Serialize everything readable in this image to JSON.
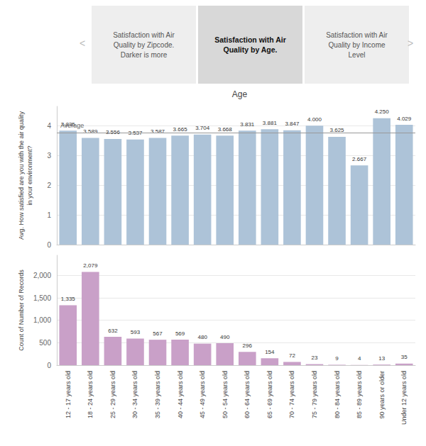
{
  "chart_data": [
    {
      "type": "bar",
      "title": "Age",
      "annotations": [
        "<",
        "Satisfaction with Air\nQuality by Zipcode.\nDarker is more",
        "Satisfaction with Air\nQuality by Age.",
        "Satisfaction with Air\nQuality by Income\nLevel",
        ">"
      ],
      "categories": [
        "12 - 17 years old",
        "18 - 24 years old",
        "25 - 29 years old",
        "30 - 34 years old",
        "35 - 39 years old",
        "40 - 44 years old",
        "45 - 49 years old",
        "50 - 54 years old",
        "60 - 64 years old",
        "65 - 69 years old",
        "70 - 74 years old",
        "75 - 79 years old",
        "80 - 84 years old",
        "85 - 89 years old",
        "90 years or older",
        "Under 12 years old"
      ],
      "values": [
        3.835,
        3.589,
        3.556,
        3.537,
        3.587,
        3.665,
        3.704,
        3.668,
        3.831,
        3.881,
        3.847,
        4.0,
        3.625,
        2.667,
        4.25,
        4.029
      ],
      "value_labels": [
        "3.835",
        "3.589",
        "3.556",
        "3.537",
        "3.587",
        "3.665",
        "3.704",
        "3.668",
        "3.831",
        "3.881",
        "3.847",
        "4.000",
        "3.625",
        "2.667",
        "4.250",
        "4.029"
      ],
      "data_labels": true,
      "color": "#adc3d8",
      "ylabel": "Avg. How satisfied are you with the air quality\nin your environment?",
      "ylim": [
        0,
        4.65
      ],
      "yticks": [
        0,
        1,
        2,
        3,
        4
      ],
      "grid": true,
      "tick_labels": "y",
      "average_line": {
        "value": 3.77,
        "label": "Average"
      }
    },
    {
      "type": "bar",
      "categories": [
        "12 - 17 years old",
        "18 - 24 years old",
        "25 - 29 years old",
        "30 - 34 years old",
        "35 - 39 years old",
        "40 - 44 years old",
        "45 - 49 years old",
        "50 - 54 years old",
        "60 - 64 years old",
        "65 - 69 years old",
        "70 - 74 years old",
        "75 - 79 years old",
        "80 - 84 years old",
        "85 - 89 years old",
        "90 years or older",
        "Under 12 years old"
      ],
      "values": [
        1335,
        2079,
        632,
        593,
        567,
        569,
        480,
        490,
        296,
        154,
        72,
        23,
        9,
        4,
        13,
        35
      ],
      "value_labels": [
        "1,335",
        "2,079",
        "632",
        "593",
        "567",
        "569",
        "480",
        "490",
        "296",
        "154",
        "72",
        "23",
        "9",
        "4",
        "13",
        "35"
      ],
      "data_labels": true,
      "color": "#c9a0c8",
      "ylabel": "Count of Number of Records",
      "ylim": [
        0,
        2450
      ],
      "yticks": [
        0,
        500,
        {
          "value": 1000,
          "label": "1,000"
        },
        {
          "value": 1500,
          "label": "1,500"
        },
        {
          "value": 2000,
          "label": "2,000"
        }
      ],
      "grid": true
    }
  ]
}
